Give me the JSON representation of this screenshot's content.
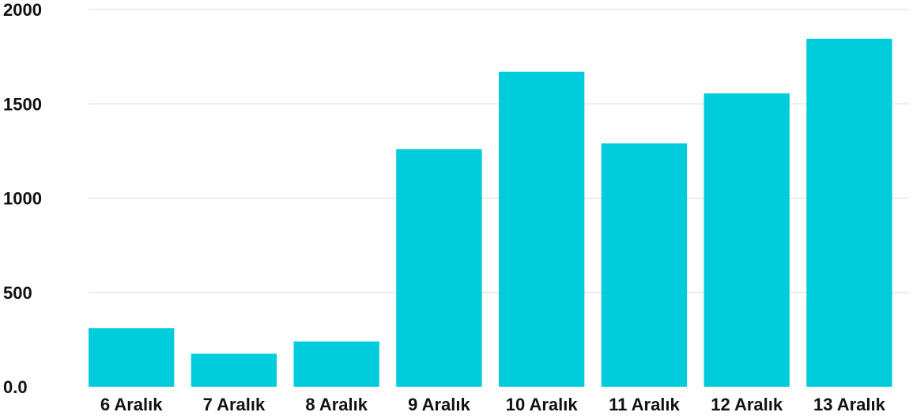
{
  "chart_data": {
    "type": "bar",
    "title": "",
    "xlabel": "",
    "ylabel": "",
    "categories": [
      "6 Aralık",
      "7 Aralık",
      "8 Aralık",
      "9 Aralık",
      "10 Aralık",
      "11 Aralık",
      "12 Aralık",
      "13 Aralık"
    ],
    "values": [
      310,
      175,
      240,
      1260,
      1670,
      1290,
      1555,
      1845
    ],
    "ylim": [
      0,
      2000
    ],
    "yticks": [
      0,
      500,
      1000,
      1500,
      2000
    ],
    "ytick_labels": [
      "0.0",
      "500",
      "1000",
      "1500",
      "2000"
    ],
    "grid": true,
    "legend": "none",
    "colors": {
      "bar": "#00CCDC",
      "grid": "#D9D9D9",
      "text": "#111111"
    }
  }
}
